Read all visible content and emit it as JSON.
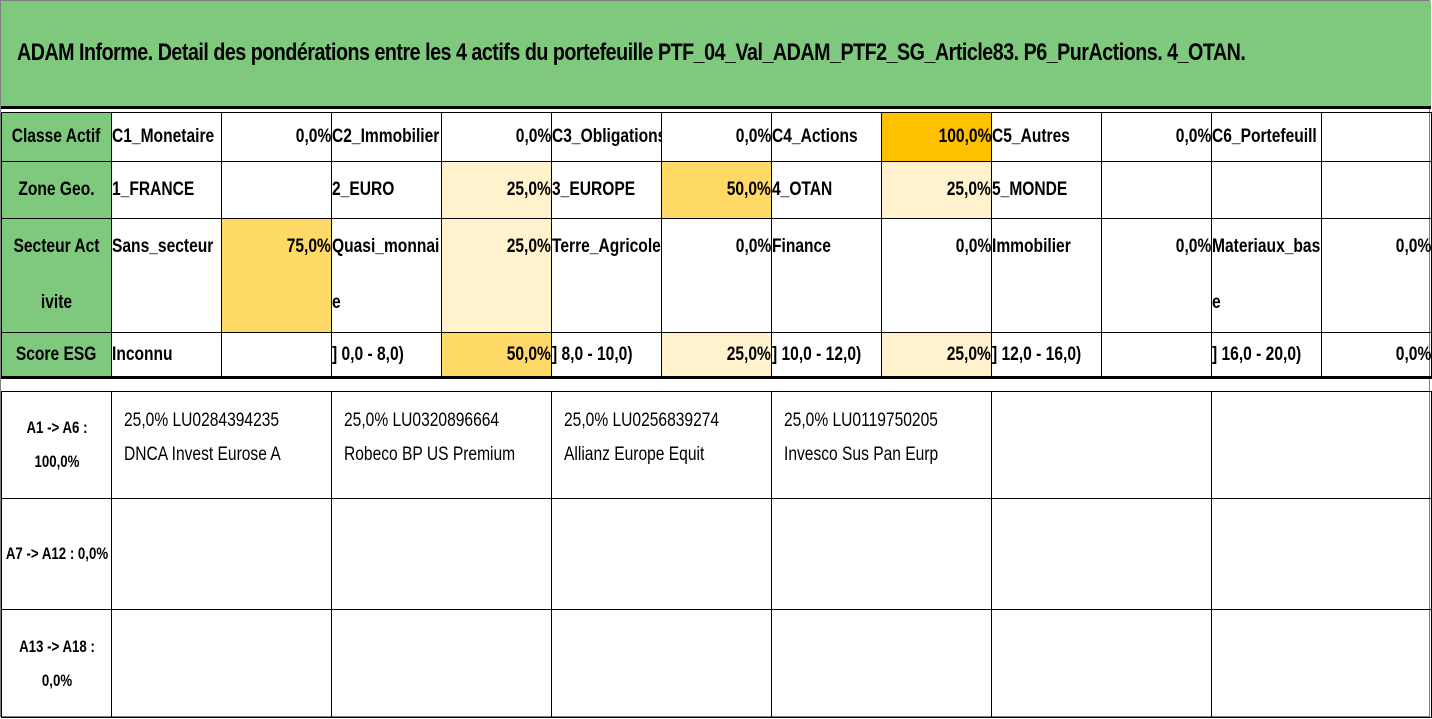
{
  "title": "ADAM Informe. Detail des pondérations entre les 4 actifs du portefeuille PTF_04_Val_ADAM_PTF2_SG_Article83. P6_PurActions. 4_OTAN.",
  "rows": {
    "classe": {
      "header": "Classe Actif",
      "cells": [
        {
          "label": "C1_Monetaire",
          "value": "0,0%"
        },
        {
          "label": "C2_Immobilier",
          "value": "0,0%"
        },
        {
          "label": "C3_Obligations",
          "value": "0,0%"
        },
        {
          "label": "C4_Actions",
          "value": "100,0%"
        },
        {
          "label": "C5_Autres",
          "value": "0,0%"
        },
        {
          "label": "C6_Portefeuill",
          "value": ""
        }
      ]
    },
    "zone": {
      "header": "Zone Geo.",
      "cells": [
        {
          "label": "1_FRANCE",
          "value": ""
        },
        {
          "label": "2_EURO",
          "value": "25,0%"
        },
        {
          "label": "3_EUROPE",
          "value": "50,0%"
        },
        {
          "label": "4_OTAN",
          "value": "25,0%"
        },
        {
          "label": "5_MONDE",
          "value": ""
        },
        {
          "label": "",
          "value": ""
        }
      ]
    },
    "secteur": {
      "header": "Secteur Activite",
      "cells": [
        {
          "label": "Sans_secteur",
          "value": "75,0%"
        },
        {
          "label": "Quasi_monnaie",
          "value": "25,0%"
        },
        {
          "label": "Terre_Agricole",
          "value": "0,0%"
        },
        {
          "label": "Finance",
          "value": "0,0%"
        },
        {
          "label": "Immobilier",
          "value": "0,0%"
        },
        {
          "label": "Materiaux_base",
          "value": "0,0%"
        }
      ]
    },
    "esg": {
      "header": "Score ESG",
      "cells": [
        {
          "label": "Inconnu",
          "value": ""
        },
        {
          "label": "] 0,0 - 8,0)",
          "value": "50,0%"
        },
        {
          "label": "] 8,0 - 10,0)",
          "value": "25,0%"
        },
        {
          "label": "] 10,0 - 12,0)",
          "value": "25,0%"
        },
        {
          "label": "] 12,0 - 16,0)",
          "value": ""
        },
        {
          "label": "] 16,0 - 20,0)",
          "value": "0,0%"
        }
      ]
    }
  },
  "assets": {
    "group1": {
      "label_line1": "A1 -> A6 :",
      "label_line2": "100,0%",
      "items": [
        {
          "weight_isin": "25,0% LU0284394235",
          "name": "DNCA Invest Eurose A"
        },
        {
          "weight_isin": "25,0% LU0320896664",
          "name": "Robeco BP US Premium"
        },
        {
          "weight_isin": "25,0% LU0256839274",
          "name": "Allianz Europe Equit"
        },
        {
          "weight_isin": "25,0% LU0119750205",
          "name": "Invesco Sus Pan Eurp"
        }
      ]
    },
    "group2": {
      "label_line1": "A7 -> A12 : 0,0%"
    },
    "group3": {
      "label_line1": "A13 -> A18 :",
      "label_line2": "0,0%"
    }
  },
  "colors": {
    "header_green": "#7fc97e",
    "pct_strong": "#ffc000",
    "pct_medium": "#ffd966",
    "pct_light": "#fff2cc"
  }
}
